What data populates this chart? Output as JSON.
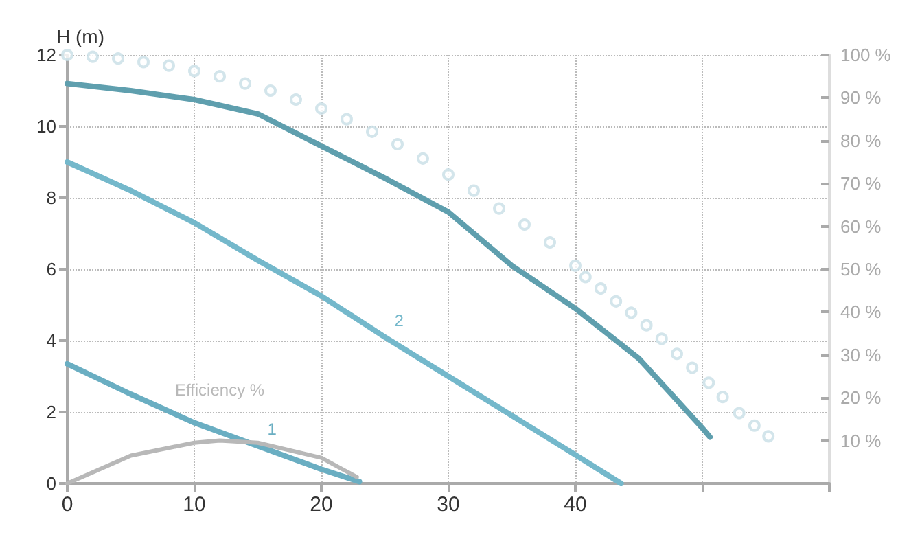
{
  "chart_data": {
    "type": "line",
    "ylabel": "H (m)",
    "xlim": [
      0,
      60
    ],
    "xticks": [
      0,
      10,
      20,
      30,
      40,
      {
        "value": 50,
        "label": null
      },
      {
        "value": 60,
        "label": null
      }
    ],
    "ylim": [
      0,
      12
    ],
    "yticks": [
      0,
      2,
      4,
      6,
      8,
      10,
      12
    ],
    "y2lim": [
      0,
      100
    ],
    "y2ticks": [
      {
        "value": 10,
        "label": "10 %"
      },
      {
        "value": 20,
        "label": "20 %"
      },
      {
        "value": 30,
        "label": "30 %"
      },
      {
        "value": 40,
        "label": "40 %"
      },
      {
        "value": 50,
        "label": "50 %"
      },
      {
        "value": 60,
        "label": "60 %"
      },
      {
        "value": 70,
        "label": "70 %"
      },
      {
        "value": 80,
        "label": "80 %"
      },
      {
        "value": 90,
        "label": "90 %"
      },
      {
        "value": 100,
        "label": "100 %"
      }
    ],
    "grid": true,
    "legend": false,
    "marker": "none",
    "line_style": "solid",
    "series": [
      {
        "type": "scatter",
        "marker": "circle",
        "color": "#c8dfe6",
        "x": [
          0,
          2,
          4,
          6,
          8,
          10,
          12,
          14,
          16,
          18,
          20,
          22,
          24,
          26,
          28,
          30,
          32,
          34,
          36,
          38,
          40,
          40.8,
          42.0,
          43.2,
          44.4,
          45.6,
          46.8,
          48.0,
          49.2,
          50.5,
          51.6,
          52.9,
          54.1,
          55.2
        ],
        "values": [
          12.0,
          11.95,
          11.9,
          11.8,
          11.7,
          11.55,
          11.4,
          11.2,
          11.0,
          10.75,
          10.5,
          10.2,
          9.85,
          9.5,
          9.1,
          8.65,
          8.2,
          7.7,
          7.25,
          6.75,
          6.1,
          5.78,
          5.46,
          5.1,
          4.78,
          4.43,
          4.05,
          3.63,
          3.24,
          2.82,
          2.42,
          1.97,
          1.62,
          1.32
        ]
      },
      {
        "color": "#5f9fae",
        "x": [
          0,
          5,
          10,
          15,
          20,
          25,
          30,
          35,
          40,
          45,
          50,
          50.6
        ],
        "values": [
          11.2,
          11.0,
          10.75,
          10.35,
          9.45,
          8.55,
          7.6,
          6.1,
          4.9,
          3.5,
          1.55,
          1.3
        ]
      },
      {
        "name": "2",
        "color": "#74b8cb",
        "x": [
          0,
          5,
          10,
          15,
          20,
          25,
          30,
          35,
          40,
          43.6
        ],
        "values": [
          9.0,
          8.2,
          7.3,
          6.25,
          5.25,
          4.1,
          3.0,
          1.9,
          0.8,
          0
        ]
      },
      {
        "name": "1",
        "color": "#6aaec2",
        "x": [
          0,
          5,
          10,
          15,
          20,
          23
        ],
        "values": [
          3.35,
          2.5,
          1.7,
          1.05,
          0.4,
          0.05
        ]
      },
      {
        "name": "Efficiency %",
        "axis": "y2",
        "color": "#b8b8b8",
        "x": [
          0,
          5,
          10,
          12,
          15,
          20,
          22.8
        ],
        "values": [
          0,
          6.5,
          9.5,
          10,
          9.5,
          6,
          1.5
        ]
      }
    ]
  }
}
